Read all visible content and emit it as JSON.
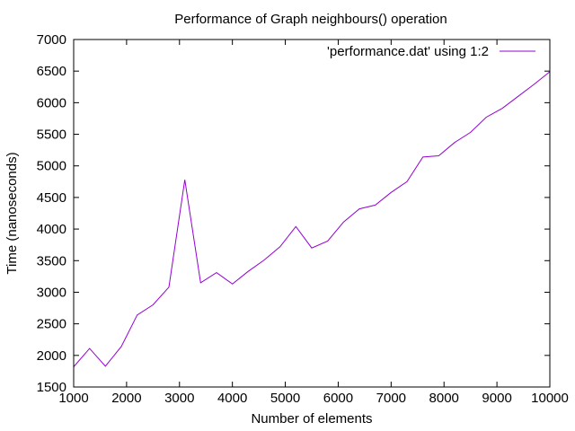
{
  "chart_data": {
    "type": "line",
    "title": "Performance of Graph neighbours() operation",
    "xlabel": "Number of elements",
    "ylabel": "Time (nanoseconds)",
    "xlim": [
      1000,
      10000
    ],
    "ylim": [
      1500,
      7000
    ],
    "xticks": [
      1000,
      2000,
      3000,
      4000,
      5000,
      6000,
      7000,
      8000,
      9000,
      10000
    ],
    "yticks": [
      1500,
      2000,
      2500,
      3000,
      3500,
      4000,
      4500,
      5000,
      5500,
      6000,
      6500,
      7000
    ],
    "grid": false,
    "legend_position": "top-right",
    "series": [
      {
        "name": "'performance.dat' using 1:2",
        "color": "#9400d3",
        "x": [
          1000,
          1300,
          1600,
          1900,
          2200,
          2500,
          2800,
          3100,
          3400,
          3700,
          4000,
          4300,
          4600,
          4900,
          5200,
          5500,
          5800,
          6100,
          6400,
          6700,
          7000,
          7300,
          7600,
          7900,
          8200,
          8500,
          8800,
          9100,
          9400,
          9700,
          10000
        ],
        "y": [
          1820,
          2110,
          1830,
          2140,
          2640,
          2800,
          3080,
          4780,
          3150,
          3310,
          3130,
          3330,
          3510,
          3720,
          4040,
          3700,
          3810,
          4110,
          4320,
          4380,
          4580,
          4750,
          5140,
          5160,
          5370,
          5530,
          5770,
          5910,
          6100,
          6290,
          6490
        ]
      }
    ]
  }
}
